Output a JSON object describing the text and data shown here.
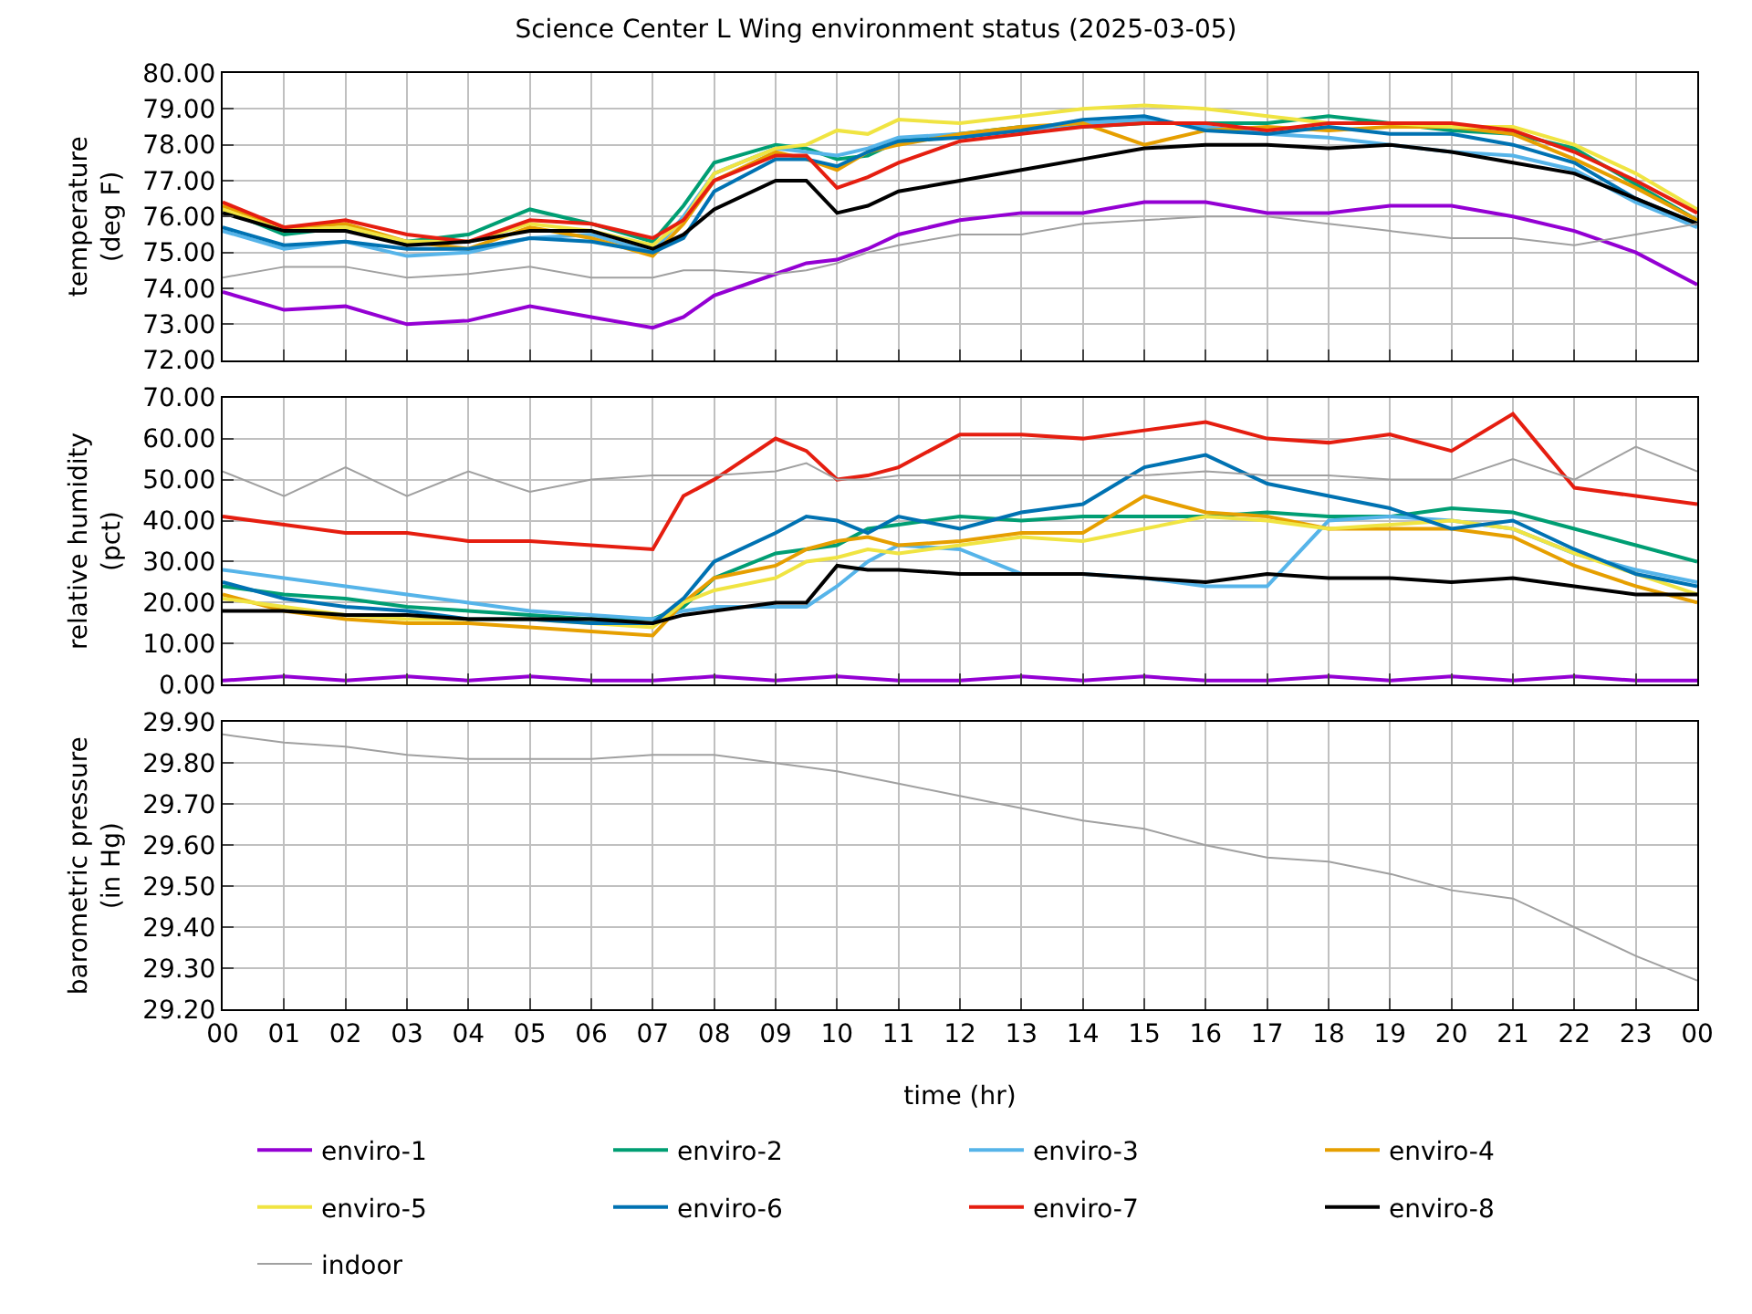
{
  "chart_data": [
    {
      "type": "line",
      "title": "Science Center L Wing environment status (2025-03-05)",
      "ylabel": "temperature\n(deg F)",
      "grid": true,
      "legend": "bottom",
      "tick_labels": "y",
      "line_style": "solid",
      "marker": "none",
      "x": [
        0,
        1,
        2,
        3,
        4,
        5,
        6,
        7,
        7.5,
        8,
        9,
        9.5,
        10,
        10.5,
        11,
        12,
        13,
        14,
        15,
        16,
        17,
        18,
        19,
        20,
        21,
        22,
        23,
        24
      ],
      "xlim": [
        0,
        24
      ],
      "xticks": [
        0,
        1,
        2,
        3,
        4,
        5,
        6,
        7,
        8,
        9,
        10,
        11,
        12,
        13,
        14,
        15,
        16,
        17,
        18,
        19,
        20,
        21,
        22,
        23,
        24
      ],
      "ylim": [
        72,
        80
      ],
      "yticks": [
        {
          "value": 72,
          "label": "72.00"
        },
        {
          "value": 73,
          "label": "73.00"
        },
        {
          "value": 74,
          "label": "74.00"
        },
        {
          "value": 75,
          "label": "75.00"
        },
        {
          "value": 76,
          "label": "76.00"
        },
        {
          "value": 77,
          "label": "77.00"
        },
        {
          "value": 78,
          "label": "78.00"
        },
        {
          "value": 79,
          "label": "79.00"
        },
        {
          "value": 80,
          "label": "80.00"
        }
      ],
      "series": [
        {
          "name": "enviro-1",
          "color": "#9400d3",
          "values": [
            73.9,
            73.4,
            73.5,
            73.0,
            73.1,
            73.5,
            73.2,
            72.9,
            73.2,
            73.8,
            74.4,
            74.7,
            74.8,
            75.1,
            75.5,
            75.9,
            76.1,
            76.1,
            76.4,
            76.4,
            76.1,
            76.1,
            76.3,
            76.3,
            76.0,
            75.6,
            75.0,
            74.1
          ]
        },
        {
          "name": "enviro-2",
          "color": "#009e73",
          "values": [
            76.2,
            75.5,
            75.7,
            75.3,
            75.5,
            76.2,
            75.8,
            75.3,
            76.3,
            77.5,
            78.0,
            77.9,
            77.6,
            77.7,
            78.1,
            78.3,
            78.5,
            78.5,
            78.6,
            78.6,
            78.6,
            78.8,
            78.6,
            78.4,
            78.3,
            77.9,
            76.9,
            75.9
          ]
        },
        {
          "name": "enviro-3",
          "color": "#56b4e9",
          "values": [
            75.6,
            75.1,
            75.3,
            74.9,
            75.0,
            75.4,
            75.5,
            75.0,
            76.0,
            77.2,
            77.9,
            77.8,
            77.7,
            77.9,
            78.2,
            78.3,
            78.4,
            78.6,
            78.7,
            78.5,
            78.3,
            78.2,
            78.0,
            77.8,
            77.7,
            77.3,
            76.4,
            75.7
          ]
        },
        {
          "name": "enviro-4",
          "color": "#e69f00",
          "values": [
            76.3,
            75.7,
            75.8,
            75.3,
            75.1,
            75.7,
            75.4,
            74.9,
            75.8,
            77.0,
            77.8,
            77.6,
            77.3,
            77.8,
            78.0,
            78.3,
            78.5,
            78.6,
            78.0,
            78.4,
            78.5,
            78.4,
            78.5,
            78.5,
            78.3,
            77.6,
            76.8,
            75.9
          ]
        },
        {
          "name": "enviro-5",
          "color": "#f0e442",
          "values": [
            76.2,
            75.6,
            75.7,
            75.3,
            75.3,
            75.8,
            75.6,
            75.2,
            75.9,
            77.2,
            77.9,
            78.0,
            78.4,
            78.3,
            78.7,
            78.6,
            78.8,
            79.0,
            79.1,
            79.0,
            78.8,
            78.6,
            78.6,
            78.5,
            78.5,
            78.0,
            77.2,
            76.2
          ]
        },
        {
          "name": "enviro-6",
          "color": "#0072b2",
          "values": [
            75.7,
            75.2,
            75.3,
            75.1,
            75.1,
            75.4,
            75.3,
            75.0,
            75.4,
            76.7,
            77.6,
            77.6,
            77.4,
            77.8,
            78.1,
            78.2,
            78.4,
            78.7,
            78.8,
            78.4,
            78.3,
            78.5,
            78.3,
            78.3,
            78.0,
            77.5,
            76.5,
            75.8
          ]
        },
        {
          "name": "enviro-7",
          "color": "#e51e10",
          "values": [
            76.4,
            75.7,
            75.9,
            75.5,
            75.3,
            75.9,
            75.8,
            75.4,
            75.9,
            77.0,
            77.7,
            77.7,
            76.8,
            77.1,
            77.5,
            78.1,
            78.3,
            78.5,
            78.6,
            78.6,
            78.4,
            78.6,
            78.6,
            78.6,
            78.4,
            77.8,
            77.0,
            76.1
          ]
        },
        {
          "name": "enviro-8",
          "color": "#000000",
          "values": [
            76.1,
            75.6,
            75.6,
            75.2,
            75.3,
            75.6,
            75.6,
            75.1,
            75.5,
            76.2,
            77.0,
            77.0,
            76.1,
            76.3,
            76.7,
            77.0,
            77.3,
            77.6,
            77.9,
            78.0,
            78.0,
            77.9,
            78.0,
            77.8,
            77.5,
            77.2,
            76.5,
            75.8
          ]
        },
        {
          "name": "indoor",
          "color": "#a0a0a0",
          "values": [
            74.3,
            74.6,
            74.6,
            74.3,
            74.4,
            74.6,
            74.3,
            74.3,
            74.5,
            74.5,
            74.4,
            74.5,
            74.7,
            75.0,
            75.2,
            75.5,
            75.5,
            75.8,
            75.9,
            76.0,
            76.0,
            75.8,
            75.6,
            75.4,
            75.4,
            75.2,
            75.5,
            75.8
          ]
        }
      ]
    },
    {
      "type": "line",
      "ylabel": "relative humidity\n(pct)",
      "grid": true,
      "tick_labels": "y",
      "line_style": "solid",
      "marker": "none",
      "x": [
        0,
        1,
        2,
        3,
        4,
        5,
        6,
        7,
        7.5,
        8,
        9,
        9.5,
        10,
        10.5,
        11,
        12,
        13,
        14,
        15,
        16,
        17,
        18,
        19,
        20,
        21,
        22,
        23,
        24
      ],
      "xlim": [
        0,
        24
      ],
      "xticks": [
        0,
        1,
        2,
        3,
        4,
        5,
        6,
        7,
        8,
        9,
        10,
        11,
        12,
        13,
        14,
        15,
        16,
        17,
        18,
        19,
        20,
        21,
        22,
        23,
        24
      ],
      "ylim": [
        0,
        70
      ],
      "yticks": [
        {
          "value": 0,
          "label": "0.00"
        },
        {
          "value": 10,
          "label": "10.00"
        },
        {
          "value": 20,
          "label": "20.00"
        },
        {
          "value": 30,
          "label": "30.00"
        },
        {
          "value": 40,
          "label": "40.00"
        },
        {
          "value": 50,
          "label": "50.00"
        },
        {
          "value": 60,
          "label": "60.00"
        },
        {
          "value": 70,
          "label": "70.00"
        }
      ],
      "series": [
        {
          "name": "enviro-1",
          "color": "#9400d3",
          "x": [
            0,
            1,
            2,
            3,
            4,
            5,
            6,
            7,
            8,
            9,
            10,
            11,
            12,
            13,
            14,
            15,
            16,
            17,
            18,
            19,
            20,
            21,
            22,
            23,
            24
          ],
          "values": [
            1,
            2,
            1,
            2,
            1,
            2,
            1,
            1,
            2,
            1,
            2,
            1,
            1,
            2,
            1,
            2,
            1,
            1,
            2,
            1,
            2,
            1,
            2,
            1,
            1
          ]
        },
        {
          "name": "enviro-2",
          "color": "#009e73",
          "values": [
            24,
            22,
            21,
            19,
            18,
            17,
            16,
            16,
            19,
            26,
            32,
            33,
            34,
            38,
            39,
            41,
            40,
            41,
            41,
            41,
            42,
            41,
            41,
            43,
            42,
            38,
            34,
            30
          ]
        },
        {
          "name": "enviro-3",
          "color": "#56b4e9",
          "values": [
            28,
            26,
            24,
            22,
            20,
            18,
            17,
            16,
            18,
            19,
            19,
            19,
            24,
            30,
            34,
            33,
            27,
            27,
            26,
            24,
            24,
            40,
            41,
            40,
            38,
            32,
            28,
            25
          ]
        },
        {
          "name": "enviro-4",
          "color": "#e69f00",
          "values": [
            22,
            18,
            16,
            15,
            15,
            14,
            13,
            12,
            20,
            26,
            29,
            33,
            35,
            36,
            34,
            35,
            37,
            37,
            46,
            42,
            41,
            38,
            38,
            38,
            36,
            29,
            24,
            20
          ]
        },
        {
          "name": "enviro-5",
          "color": "#f0e442",
          "values": [
            21,
            19,
            17,
            16,
            16,
            16,
            15,
            14,
            20,
            23,
            26,
            30,
            31,
            33,
            32,
            34,
            36,
            35,
            38,
            41,
            40,
            38,
            39,
            40,
            38,
            32,
            27,
            22
          ]
        },
        {
          "name": "enviro-6",
          "color": "#0072b2",
          "values": [
            25,
            21,
            19,
            18,
            16,
            16,
            15,
            15,
            21,
            30,
            37,
            41,
            40,
            37,
            41,
            38,
            42,
            44,
            53,
            56,
            49,
            46,
            43,
            38,
            40,
            33,
            27,
            24
          ]
        },
        {
          "name": "enviro-7",
          "color": "#e51e10",
          "values": [
            41,
            39,
            37,
            37,
            35,
            35,
            34,
            33,
            46,
            50,
            60,
            57,
            50,
            51,
            53,
            61,
            61,
            60,
            62,
            64,
            60,
            59,
            61,
            57,
            66,
            48,
            46,
            44
          ]
        },
        {
          "name": "enviro-8",
          "color": "#000000",
          "values": [
            18,
            18,
            17,
            17,
            16,
            16,
            16,
            15,
            17,
            18,
            20,
            20,
            29,
            28,
            28,
            27,
            27,
            27,
            26,
            25,
            27,
            26,
            26,
            25,
            26,
            24,
            22,
            22
          ]
        },
        {
          "name": "indoor",
          "color": "#a0a0a0",
          "values": [
            52,
            46,
            53,
            46,
            52,
            47,
            50,
            51,
            51,
            51,
            52,
            54,
            50,
            50,
            51,
            51,
            51,
            51,
            51,
            52,
            51,
            51,
            50,
            50,
            55,
            50,
            58,
            52
          ]
        }
      ]
    },
    {
      "type": "line",
      "ylabel": "barometric pressure\n(in Hg)",
      "xlabel": "time (hr)",
      "grid": true,
      "line_style": "solid",
      "marker": "none",
      "x": [
        0,
        1,
        2,
        3,
        4,
        5,
        6,
        7,
        8,
        9,
        10,
        11,
        12,
        13,
        14,
        15,
        16,
        17,
        18,
        19,
        20,
        21,
        22,
        23,
        24
      ],
      "xlim": [
        0,
        24
      ],
      "xticks": [
        {
          "value": 0,
          "label": "00"
        },
        {
          "value": 1,
          "label": "01"
        },
        {
          "value": 2,
          "label": "02"
        },
        {
          "value": 3,
          "label": "03"
        },
        {
          "value": 4,
          "label": "04"
        },
        {
          "value": 5,
          "label": "05"
        },
        {
          "value": 6,
          "label": "06"
        },
        {
          "value": 7,
          "label": "07"
        },
        {
          "value": 8,
          "label": "08"
        },
        {
          "value": 9,
          "label": "09"
        },
        10,
        11,
        12,
        13,
        14,
        15,
        16,
        17,
        18,
        19,
        20,
        21,
        22,
        23,
        {
          "value": 24,
          "label": "00"
        }
      ],
      "ylim": [
        29.2,
        29.9
      ],
      "yticks": [
        {
          "value": 29.2,
          "label": "29.20"
        },
        {
          "value": 29.3,
          "label": "29.30"
        },
        {
          "value": 29.4,
          "label": "29.40"
        },
        {
          "value": 29.5,
          "label": "29.50"
        },
        {
          "value": 29.6,
          "label": "29.60"
        },
        {
          "value": 29.7,
          "label": "29.70"
        },
        {
          "value": 29.8,
          "label": "29.80"
        },
        {
          "value": 29.9,
          "label": "29.90"
        }
      ],
      "series": [
        {
          "name": "indoor",
          "color": "#a0a0a0",
          "values": [
            29.87,
            29.85,
            29.84,
            29.82,
            29.81,
            29.81,
            29.81,
            29.82,
            29.82,
            29.8,
            29.78,
            29.75,
            29.72,
            29.69,
            29.66,
            29.64,
            29.6,
            29.57,
            29.56,
            29.53,
            29.49,
            29.47,
            29.4,
            29.33,
            29.27
          ]
        }
      ]
    }
  ]
}
